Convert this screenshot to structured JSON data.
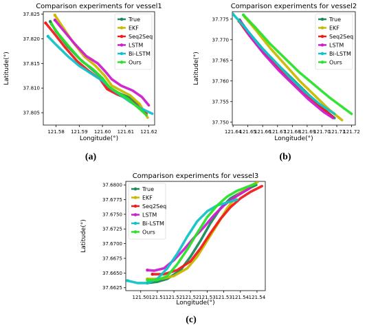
{
  "colors": {
    "True": "#1a8a5a",
    "EKF": "#c8b800",
    "Seq2Seq": "#ee1c1c",
    "LSTM": "#cc1ecc",
    "Bi-LSTM": "#12c2c8",
    "Ours": "#2ce02c"
  },
  "chart_data": [
    {
      "type": "line",
      "title": "Comparison experiments for vessel1",
      "xlabel": "Longitude(°)",
      "ylabel": "Latitude(°)",
      "caption": "(a)",
      "xlim": [
        121.5745,
        121.6225
      ],
      "ylim": [
        37.8025,
        37.8255
      ],
      "xticks": [
        121.58,
        121.59,
        121.6,
        121.61,
        121.62
      ],
      "xticklabels": [
        "121.58",
        "121.59",
        "121.60",
        "121.61",
        "121.62"
      ],
      "yticks": [
        37.805,
        37.81,
        37.815,
        37.82,
        37.825
      ],
      "yticklabels": [
        "37.805",
        "37.810",
        "37.815",
        "37.820",
        "37.825"
      ],
      "legend": "top-right",
      "grid": false,
      "series": [
        {
          "name": "True",
          "x": [
            121.5775,
            121.58,
            121.585,
            121.59,
            121.595,
            121.6,
            121.603,
            121.607,
            121.612,
            121.616,
            121.619
          ],
          "y": [
            37.8235,
            37.8215,
            37.8185,
            37.816,
            37.814,
            37.812,
            37.81,
            37.809,
            37.808,
            37.8065,
            37.8045
          ]
        },
        {
          "name": "EKF",
          "x": [
            121.5795,
            121.582,
            121.587,
            121.592,
            121.597,
            121.601,
            121.604,
            121.608,
            121.612,
            121.616,
            121.6195
          ],
          "y": [
            37.8248,
            37.823,
            37.8195,
            37.8165,
            37.8145,
            37.8125,
            37.8105,
            37.8095,
            37.8085,
            37.8068,
            37.804
          ]
        },
        {
          "name": "Seq2Seq",
          "x": [
            121.5755,
            121.579,
            121.584,
            121.589,
            121.594,
            121.599,
            121.602,
            121.606,
            121.611,
            121.6155,
            121.619
          ],
          "y": [
            37.8232,
            37.8212,
            37.8182,
            37.8155,
            37.8135,
            37.8118,
            37.8098,
            37.8088,
            37.8078,
            37.8062,
            37.8048
          ]
        },
        {
          "name": "LSTM",
          "x": [
            121.5795,
            121.583,
            121.588,
            121.593,
            121.598,
            121.601,
            121.604,
            121.608,
            121.613,
            121.617,
            121.62
          ],
          "y": [
            37.8238,
            37.8218,
            37.819,
            37.8165,
            37.815,
            37.8135,
            37.8118,
            37.8105,
            37.8095,
            37.8082,
            37.8065
          ]
        },
        {
          "name": "Bi-LSTM",
          "x": [
            121.5765,
            121.58,
            121.585,
            121.59,
            121.595,
            121.6,
            121.604,
            121.608,
            121.612,
            121.616,
            121.6215
          ],
          "y": [
            37.8205,
            37.8188,
            37.8165,
            37.8145,
            37.813,
            37.8115,
            37.8098,
            37.8085,
            37.8072,
            37.806,
            37.8048
          ]
        },
        {
          "name": "Ours",
          "x": [
            121.578,
            121.581,
            121.586,
            121.591,
            121.596,
            121.6,
            121.603,
            121.607,
            121.611,
            121.615,
            121.619
          ],
          "y": [
            37.823,
            37.821,
            37.8182,
            37.8155,
            37.8138,
            37.812,
            37.8102,
            37.809,
            37.8078,
            37.8062,
            37.8045
          ]
        }
      ]
    },
    {
      "type": "line",
      "title": "Comparison experiments for vessel2",
      "xlabel": "Longitude(°)",
      "ylabel": "Latitude(°)",
      "caption": "(b)",
      "xlim": [
        121.6395,
        121.7225
      ],
      "ylim": [
        37.7493,
        37.7768
      ],
      "xticks": [
        121.64,
        121.65,
        121.66,
        121.67,
        121.68,
        121.69,
        121.7,
        121.71,
        121.72
      ],
      "xticklabels": [
        "121.64",
        "121.65",
        "121.66",
        "121.67",
        "121.68",
        "121.69",
        "121.70",
        "121.71",
        "121.72"
      ],
      "yticks": [
        37.75,
        37.755,
        37.76,
        37.765,
        37.77,
        37.775
      ],
      "yticklabels": [
        "37.750",
        "37.755",
        "37.760",
        "37.765",
        "37.770",
        "37.775"
      ],
      "legend": "top-right",
      "grid": false,
      "series": [
        {
          "name": "True",
          "x": [
            121.6445,
            121.65,
            121.66,
            121.67,
            121.68,
            121.69,
            121.7,
            121.7085
          ],
          "y": [
            37.7748,
            37.772,
            37.7678,
            37.764,
            37.7605,
            37.757,
            37.7535,
            37.751
          ]
        },
        {
          "name": "EKF",
          "x": [
            121.648,
            121.655,
            121.665,
            121.675,
            121.685,
            121.695,
            121.705,
            121.7135
          ],
          "y": [
            37.7755,
            37.7725,
            37.768,
            37.764,
            37.76,
            37.7565,
            37.753,
            37.7505
          ]
        },
        {
          "name": "Seq2Seq",
          "x": [
            121.644,
            121.65,
            121.66,
            121.67,
            121.68,
            121.69,
            121.7,
            121.7075
          ],
          "y": [
            37.7745,
            37.7715,
            37.7672,
            37.7635,
            37.7598,
            37.7565,
            37.7535,
            37.7512
          ]
        },
        {
          "name": "LSTM",
          "x": [
            121.645,
            121.651,
            121.661,
            121.671,
            121.681,
            121.691,
            121.701,
            121.7075
          ],
          "y": [
            37.7745,
            37.771,
            37.7665,
            37.7625,
            37.759,
            37.7555,
            37.7525,
            37.751
          ]
        },
        {
          "name": "Bi-LSTM",
          "x": [
            121.64,
            121.648,
            121.658,
            121.668,
            121.678,
            121.688,
            121.698,
            121.7085
          ],
          "y": [
            37.7762,
            37.773,
            37.7685,
            37.7648,
            37.761,
            37.7575,
            37.7545,
            37.752
          ]
        },
        {
          "name": "Ours",
          "x": [
            121.647,
            121.655,
            121.665,
            121.675,
            121.685,
            121.695,
            121.705,
            121.72
          ],
          "y": [
            37.776,
            37.773,
            37.769,
            37.7655,
            37.762,
            37.759,
            37.756,
            37.752
          ]
        }
      ]
    },
    {
      "type": "line",
      "title": "Comparison experiments for vessel3",
      "xlabel": "Longitude(°)",
      "ylabel": "Latitude(°)",
      "caption": "(c)",
      "xlim": [
        121.5005,
        121.5425
      ],
      "ylim": [
        37.662,
        37.6806
      ],
      "xticks": [
        121.505,
        121.51,
        121.515,
        121.52,
        121.525,
        121.53,
        121.535,
        121.54
      ],
      "xticklabels": [
        "121.50",
        "121.51",
        "121.52",
        "121.52",
        "121.53",
        "121.53",
        "121.54",
        "121.54"
      ],
      "yticks": [
        37.6625,
        37.665,
        37.6675,
        37.67,
        37.6725,
        37.675,
        37.6775,
        37.68
      ],
      "yticklabels": [
        "37.6625",
        "37.6650",
        "37.6675",
        "37.6700",
        "37.6725",
        "37.6750",
        "37.6775",
        "37.6800"
      ],
      "legend": "top-left",
      "grid": false,
      "series": [
        {
          "name": "True",
          "x": [
            121.507,
            121.51,
            121.513,
            121.517,
            121.52,
            121.523,
            121.526,
            121.529,
            121.532,
            121.536,
            121.5398
          ],
          "y": [
            37.6633,
            37.6635,
            37.664,
            37.6655,
            37.6678,
            37.6705,
            37.6735,
            37.676,
            37.6777,
            37.679,
            37.68
          ]
        },
        {
          "name": "EKF",
          "x": [
            121.507,
            121.511,
            121.515,
            121.519,
            121.522,
            121.525,
            121.528,
            121.531,
            121.534,
            121.537,
            121.5402
          ],
          "y": [
            37.664,
            37.664,
            37.6645,
            37.6658,
            37.6678,
            37.6705,
            37.6732,
            37.676,
            37.6782,
            37.6795,
            37.6805
          ]
        },
        {
          "name": "Seq2Seq",
          "x": [
            121.5085,
            121.512,
            121.516,
            121.52,
            121.523,
            121.526,
            121.529,
            121.532,
            121.535,
            121.538,
            121.5415
          ],
          "y": [
            37.6648,
            37.6648,
            37.6655,
            37.667,
            37.6692,
            37.6718,
            37.6742,
            37.6762,
            37.6777,
            37.6788,
            37.6798
          ]
        },
        {
          "name": "LSTM",
          "x": [
            121.507,
            121.509,
            121.512,
            121.515,
            121.518,
            121.521,
            121.524,
            121.527,
            121.53,
            121.533,
            121.538
          ],
          "y": [
            37.6655,
            37.6654,
            37.6658,
            37.6672,
            37.669,
            37.671,
            37.6728,
            37.6748,
            37.6765,
            37.6778,
            37.6795
          ]
        },
        {
          "name": "Bi-LSTM",
          "x": [
            121.501,
            121.504,
            121.507,
            121.51,
            121.513,
            121.516,
            121.519,
            121.522,
            121.525,
            121.528,
            121.534
          ],
          "y": [
            37.6637,
            37.6633,
            37.6633,
            37.664,
            37.6658,
            37.6683,
            37.6712,
            37.6738,
            37.6755,
            37.6765,
            37.6775
          ]
        },
        {
          "name": "Ours",
          "x": [
            121.507,
            121.51,
            121.513,
            121.516,
            121.519,
            121.522,
            121.525,
            121.528,
            121.531,
            121.534,
            121.5395
          ],
          "y": [
            37.6638,
            37.6638,
            37.6645,
            37.6665,
            37.669,
            37.6718,
            37.6745,
            37.6765,
            37.678,
            37.679,
            37.6802
          ]
        }
      ]
    }
  ]
}
